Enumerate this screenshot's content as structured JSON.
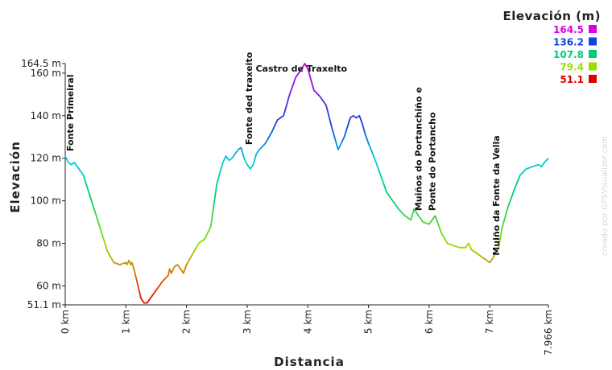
{
  "chart_data": {
    "type": "line",
    "xlabel": "Distancia",
    "ylabel": "Elevación",
    "xlim": [
      0,
      7.966
    ],
    "ylim": [
      51.1,
      164.5
    ],
    "x_ticks": [
      {
        "v": 0,
        "label": "0 km"
      },
      {
        "v": 1,
        "label": "1 km"
      },
      {
        "v": 2,
        "label": "2 km"
      },
      {
        "v": 3,
        "label": "3 km"
      },
      {
        "v": 4,
        "label": "4 km"
      },
      {
        "v": 5,
        "label": "5 km"
      },
      {
        "v": 6,
        "label": "6 km"
      },
      {
        "v": 7,
        "label": "7 km"
      },
      {
        "v": 7.966,
        "label": "7.966 km"
      }
    ],
    "y_ticks": [
      {
        "v": 51.1,
        "label": "51.1 m"
      },
      {
        "v": 60,
        "label": "60 m"
      },
      {
        "v": 80,
        "label": "80 m"
      },
      {
        "v": 100,
        "label": "100 m"
      },
      {
        "v": 120,
        "label": "120 m"
      },
      {
        "v": 140,
        "label": "140 m"
      },
      {
        "v": 160,
        "label": "160 m"
      },
      {
        "v": 164.5,
        "label": "164.5 m"
      }
    ],
    "legend": {
      "title": "Elevación (m)",
      "placement": "top-right",
      "entries": [
        {
          "label": "164.5",
          "color": "#dd00dd"
        },
        {
          "label": "136.2",
          "color": "#1144dd"
        },
        {
          "label": "107.8",
          "color": "#00cc77"
        },
        {
          "label": "79.4",
          "color": "#99dd00"
        },
        {
          "label": "51.1",
          "color": "#dd0000"
        }
      ]
    },
    "series": [
      {
        "x": [
          0,
          0.05,
          0.1,
          0.15,
          0.2,
          0.3,
          0.4,
          0.5,
          0.6,
          0.7,
          0.8,
          0.9,
          1.0,
          1.02,
          1.05,
          1.08,
          1.1,
          1.15,
          1.2,
          1.25,
          1.3,
          1.35,
          1.4,
          1.5,
          1.6,
          1.7,
          1.72,
          1.75,
          1.8,
          1.85,
          1.9,
          1.95,
          2.0,
          2.1,
          2.2,
          2.3,
          2.4,
          2.5,
          2.6,
          2.65,
          2.7,
          2.75,
          2.8,
          2.85,
          2.9,
          2.95,
          3.0,
          3.05,
          3.1,
          3.15,
          3.2,
          3.3,
          3.4,
          3.5,
          3.6,
          3.7,
          3.8,
          3.9,
          3.95,
          4.0,
          4.1,
          4.2,
          4.3,
          4.4,
          4.5,
          4.6,
          4.7,
          4.75,
          4.8,
          4.85,
          4.9,
          4.95,
          5.0,
          5.1,
          5.2,
          5.3,
          5.4,
          5.5,
          5.6,
          5.7,
          5.75,
          5.8,
          5.9,
          6.0,
          6.1,
          6.2,
          6.3,
          6.4,
          6.5,
          6.6,
          6.65,
          6.7,
          6.8,
          6.9,
          7.0,
          7.05,
          7.1,
          7.15,
          7.2,
          7.3,
          7.4,
          7.5,
          7.6,
          7.7,
          7.8,
          7.85,
          7.9,
          7.966
        ],
        "y": [
          121,
          118,
          117,
          118,
          116,
          112,
          103,
          94,
          85,
          76,
          71,
          70,
          71,
          70,
          72,
          70,
          71,
          66,
          60,
          54,
          52,
          52,
          54,
          58,
          62,
          65,
          68,
          66,
          69,
          70,
          68,
          66,
          70,
          75,
          80,
          82,
          88,
          108,
          118,
          121,
          119,
          120,
          122,
          124,
          125,
          120,
          117,
          115,
          117,
          122,
          124,
          127,
          132,
          138,
          140,
          150,
          158,
          162,
          164.5,
          162,
          152,
          149,
          145,
          134,
          124,
          130,
          139,
          140,
          139,
          140,
          136,
          131,
          127,
          120,
          112,
          104,
          100,
          96,
          93,
          91,
          96,
          94,
          90,
          89,
          93,
          85,
          80,
          79,
          78,
          78,
          80,
          77,
          75,
          73,
          71,
          73,
          76,
          78,
          87,
          97,
          105,
          112,
          115,
          116,
          117,
          116,
          118,
          120
        ]
      }
    ],
    "annotations": [
      {
        "label": "Fonte Primeiral",
        "x": 0.08,
        "y": 121,
        "orient": "vertical"
      },
      {
        "label": "Fonte ded traxeito",
        "x": 3.03,
        "y": 124,
        "orient": "vertical"
      },
      {
        "label": "Castro de Traxelto",
        "x": 3.96,
        "y": 164.5,
        "orient": "horizontal"
      },
      {
        "label": "Muiños do Portanchiño e",
        "x": 5.82,
        "y": 93,
        "orient": "vertical"
      },
      {
        "label": "Ponte do Portancho",
        "x": 6.05,
        "y": 93,
        "orient": "vertical"
      },
      {
        "label": "Muiño da Fonte da Vella",
        "x": 7.1,
        "y": 72,
        "orient": "vertical"
      }
    ],
    "credit": "creado por GPSVisualizer.com"
  }
}
